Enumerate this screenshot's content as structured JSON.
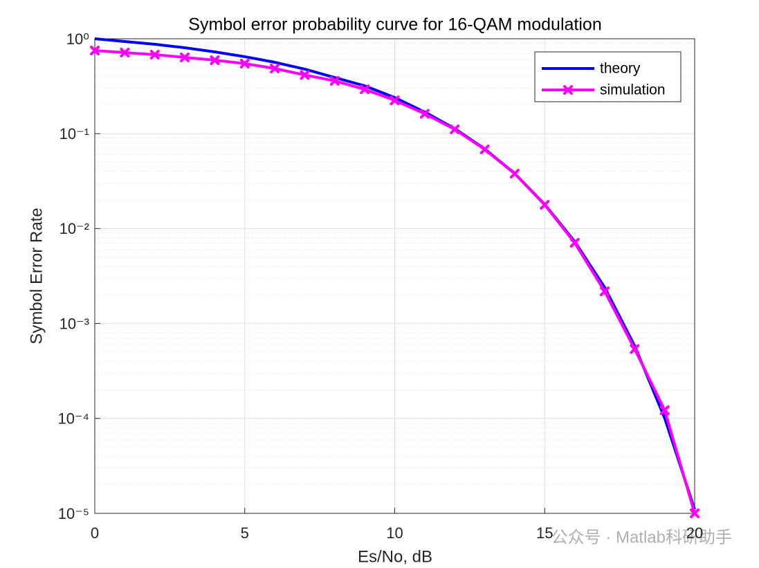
{
  "chart_data": {
    "type": "line",
    "title": "Symbol error probability curve for 16-QAM modulation",
    "xlabel": "Es/No, dB",
    "ylabel": "Symbol Error Rate",
    "x": [
      0,
      1,
      2,
      3,
      4,
      5,
      6,
      7,
      8,
      9,
      10,
      11,
      12,
      13,
      14,
      15,
      16,
      17,
      18,
      19,
      20
    ],
    "series": [
      {
        "name": "theory",
        "color": "#0000ff",
        "values": [
          1.0,
          0.935,
          0.874,
          0.804,
          0.727,
          0.647,
          0.565,
          0.478,
          0.39,
          0.319,
          0.24,
          0.169,
          0.113,
          0.069,
          0.038,
          0.018,
          0.0073,
          0.0024,
          0.00058,
          0.000101,
          1.1e-05
        ]
      },
      {
        "name": "simulation",
        "color": "#ff00ff",
        "marker": "x",
        "values": [
          0.751,
          0.715,
          0.68,
          0.636,
          0.594,
          0.547,
          0.486,
          0.415,
          0.36,
          0.293,
          0.224,
          0.162,
          0.111,
          0.0682,
          0.0379,
          0.0178,
          0.00708,
          0.00218,
          0.000538,
          0.000122,
          1e-05
        ]
      }
    ],
    "xlim": [
      0,
      20
    ],
    "ylim": [
      1e-05,
      1
    ],
    "xticks": [
      0,
      5,
      10,
      15,
      20
    ],
    "yticks": [
      {
        "value": 1e-05,
        "label": "10⁻⁵"
      },
      {
        "value": 0.0001,
        "label": "10⁻⁴"
      },
      {
        "value": 0.001,
        "label": "10⁻³"
      },
      {
        "value": 0.01,
        "label": "10⁻²"
      },
      {
        "value": 0.1,
        "label": "10⁻¹"
      },
      {
        "value": 1,
        "label": "10⁰"
      }
    ],
    "yscale": "log",
    "grid": true,
    "legend": "upper right"
  },
  "watermark": "公众号 · Matlab科研助手"
}
